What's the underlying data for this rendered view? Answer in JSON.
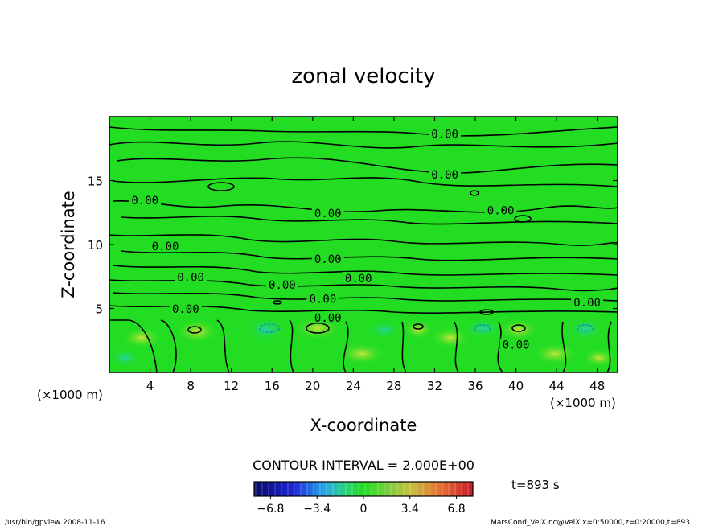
{
  "chart_data": {
    "type": "contour",
    "title": "zonal velocity",
    "xlabel": "X-coordinate",
    "ylabel": "Z-coordinate",
    "x_unit_left": "(×1000 m)",
    "x_unit_right": "(×1000 m)",
    "xlim": [
      0,
      50
    ],
    "ylim": [
      0,
      20
    ],
    "xticks": [
      4,
      8,
      12,
      16,
      20,
      24,
      28,
      32,
      36,
      40,
      44,
      48
    ],
    "yticks": [
      5,
      10,
      15
    ],
    "contour_interval_text": "CONTOUR INTERVAL = 2.000E+00",
    "colorbar": {
      "ticks": [
        -6.8,
        -3.4,
        0,
        3.4,
        6.8
      ],
      "tick_labels": [
        "−6.8",
        "−3.4",
        "0",
        "3.4",
        "6.8"
      ],
      "range": [
        -8,
        8
      ]
    },
    "contour_labels": [
      {
        "text": "0.00",
        "x": 33.0,
        "y": 18.6
      },
      {
        "text": "0.00",
        "x": 33.0,
        "y": 15.4
      },
      {
        "text": "0.00",
        "x": 3.5,
        "y": 13.4
      },
      {
        "text": "0.00",
        "x": 21.5,
        "y": 12.4
      },
      {
        "text": "0.00",
        "x": 38.5,
        "y": 12.6
      },
      {
        "text": "0.00",
        "x": 5.5,
        "y": 9.8
      },
      {
        "text": "0.00",
        "x": 21.5,
        "y": 8.8
      },
      {
        "text": "0.00",
        "x": 24.5,
        "y": 7.3
      },
      {
        "text": "0.00",
        "x": 8.0,
        "y": 7.4
      },
      {
        "text": "0.00",
        "x": 17.0,
        "y": 6.8
      },
      {
        "text": "0.00",
        "x": 21.0,
        "y": 5.7
      },
      {
        "text": "0.00",
        "x": 47.0,
        "y": 5.4
      },
      {
        "text": "0.00",
        "x": 7.5,
        "y": 4.9
      },
      {
        "text": "0.00",
        "x": 21.5,
        "y": 4.2
      },
      {
        "text": "0.00",
        "x": 40.0,
        "y": 2.1
      }
    ],
    "time_label": "t=893 s",
    "colors": {
      "field": "#22dd22",
      "line": "#000000"
    }
  },
  "footer": {
    "left": "/usr/bin/gpview   2008-11-16",
    "right": "MarsCond_VelX.nc@VelX,x=0:50000,z=0:20000,t=893"
  }
}
